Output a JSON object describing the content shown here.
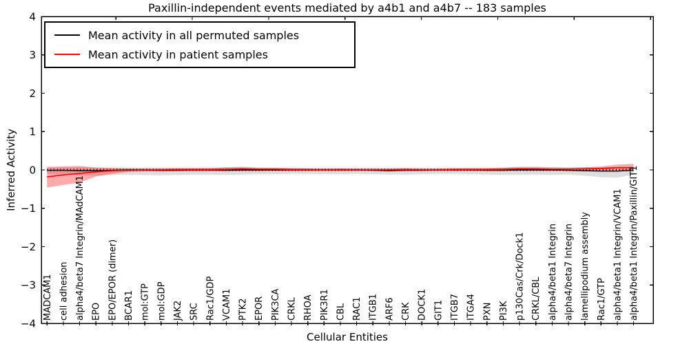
{
  "figure": {
    "title": "Paxillin-independent events mediated by a4b1 and a4b7 -- 183 samples",
    "xlabel": "Cellular Entities",
    "ylabel": "Inferred Activity"
  },
  "legend": {
    "entries": [
      {
        "label": "Mean activity in all permuted samples",
        "color": "#000000"
      },
      {
        "label": "Mean activity in patient samples",
        "color": "#ff0000"
      }
    ]
  },
  "chart_data": {
    "type": "line",
    "title": "Paxillin-independent events mediated by a4b1 and a4b7 -- 183 samples",
    "xlabel": "Cellular Entities",
    "ylabel": "Inferred Activity",
    "ylim": [
      -4,
      4
    ],
    "yticks": [
      4,
      3,
      2,
      1,
      0,
      -1,
      -2,
      -3,
      -4
    ],
    "ytick_labels": [
      "4",
      "3",
      "2",
      "1",
      "0",
      "−1",
      "−2",
      "−3",
      "−4"
    ],
    "grid": false,
    "legend_position": "upper left",
    "reference_line_y": 0,
    "categories": [
      "MADCAM1",
      "cell adhesion",
      "alpha4/beta7 Integrin/MAdCAM1",
      "EPO",
      "EPO/EPOR (dimer)",
      "BCAR1",
      "mol:GTP",
      "mol:GDP",
      "JAK2",
      "SRC",
      "Rac1/GDP",
      "VCAM1",
      "PTK2",
      "EPOR",
      "PIK3CA",
      "CRKL",
      "RHOA",
      "PIK3R1",
      "CBL",
      "RAC1",
      "ITGB1",
      "ARF6",
      "CRK",
      "DOCK1",
      "GIT1",
      "ITGB7",
      "ITGA4",
      "PXN",
      "PI3K",
      "p130Cas/Crk/Dock1",
      "CRKL/CBL",
      "alpha4/beta1 Integrin",
      "alpha4/beta7 Integrin",
      "lamellipodium assembly",
      "Rac1/GTP",
      "alpha4/beta1 Integrin/VCAM1",
      "alpha4/beta1 Integrin/Paxillin/GIT1"
    ],
    "series": [
      {
        "name": "Mean activity in all permuted samples",
        "color": "#000000",
        "style": "solid",
        "values": [
          -0.01,
          -0.01,
          -0.02,
          -0.02,
          -0.01,
          0,
          0,
          -0.01,
          -0.01,
          0,
          0,
          -0.01,
          0,
          0,
          0,
          0,
          0,
          0,
          0,
          0,
          -0.01,
          -0.02,
          -0.01,
          -0.01,
          0,
          0,
          0,
          -0.01,
          -0.01,
          0,
          0,
          0,
          -0.01,
          -0.02,
          -0.03,
          -0.03,
          -0.01
        ]
      },
      {
        "name": "Mean activity in patient samples",
        "color": "#ff0000",
        "style": "solid",
        "values": [
          -0.18,
          -0.13,
          -0.09,
          -0.05,
          -0.02,
          -0.01,
          0,
          0,
          0.01,
          0.01,
          0.01,
          0.02,
          0.03,
          0.02,
          0.02,
          0.01,
          0.01,
          0,
          0.01,
          0,
          0,
          0,
          0.01,
          0,
          0,
          0.01,
          0.01,
          0.01,
          0.02,
          0.03,
          0.03,
          0.02,
          0.02,
          0.03,
          0.04,
          0.06,
          0.06
        ]
      }
    ],
    "bands": [
      {
        "name": "permuted samples band",
        "color": "rgba(0,0,0,0.13)",
        "upper": [
          0.06,
          0.07,
          0.08,
          0.07,
          0.06,
          0.06,
          0.06,
          0.06,
          0.05,
          0.05,
          0.06,
          0.06,
          0.06,
          0.05,
          0.05,
          0.05,
          0.05,
          0.05,
          0.05,
          0.05,
          0.05,
          0.05,
          0.05,
          0.05,
          0.05,
          0.05,
          0.05,
          0.05,
          0.06,
          0.06,
          0.06,
          0.06,
          0.06,
          0.07,
          0.07,
          0.08,
          0.09
        ],
        "lower": [
          -0.1,
          -0.12,
          -0.14,
          -0.15,
          -0.13,
          -0.12,
          -0.13,
          -0.14,
          -0.13,
          -0.12,
          -0.12,
          -0.13,
          -0.12,
          -0.11,
          -0.11,
          -0.1,
          -0.1,
          -0.11,
          -0.11,
          -0.1,
          -0.11,
          -0.12,
          -0.12,
          -0.11,
          -0.1,
          -0.1,
          -0.11,
          -0.12,
          -0.13,
          -0.12,
          -0.12,
          -0.13,
          -0.12,
          -0.15,
          -0.19,
          -0.2,
          -0.12
        ]
      },
      {
        "name": "patient samples band",
        "color": "rgba(255,0,0,0.33)",
        "upper": [
          0.08,
          0.09,
          0.1,
          0.06,
          0.05,
          0.04,
          0.04,
          0.04,
          0.05,
          0.05,
          0.05,
          0.07,
          0.08,
          0.06,
          0.06,
          0.05,
          0.04,
          0.04,
          0.04,
          0.04,
          0.04,
          0.04,
          0.05,
          0.04,
          0.04,
          0.05,
          0.05,
          0.05,
          0.06,
          0.08,
          0.08,
          0.07,
          0.06,
          0.07,
          0.09,
          0.14,
          0.16
        ],
        "lower": [
          -0.46,
          -0.39,
          -0.33,
          -0.17,
          -0.1,
          -0.05,
          -0.04,
          -0.04,
          -0.03,
          -0.03,
          -0.03,
          -0.03,
          -0.03,
          -0.03,
          -0.02,
          -0.02,
          -0.02,
          -0.02,
          -0.02,
          -0.02,
          -0.02,
          -0.02,
          -0.02,
          -0.02,
          -0.02,
          -0.02,
          -0.02,
          -0.02,
          -0.02,
          -0.02,
          -0.02,
          -0.02,
          -0.02,
          -0.02,
          -0.02,
          -0.01,
          -0.02
        ]
      }
    ]
  }
}
